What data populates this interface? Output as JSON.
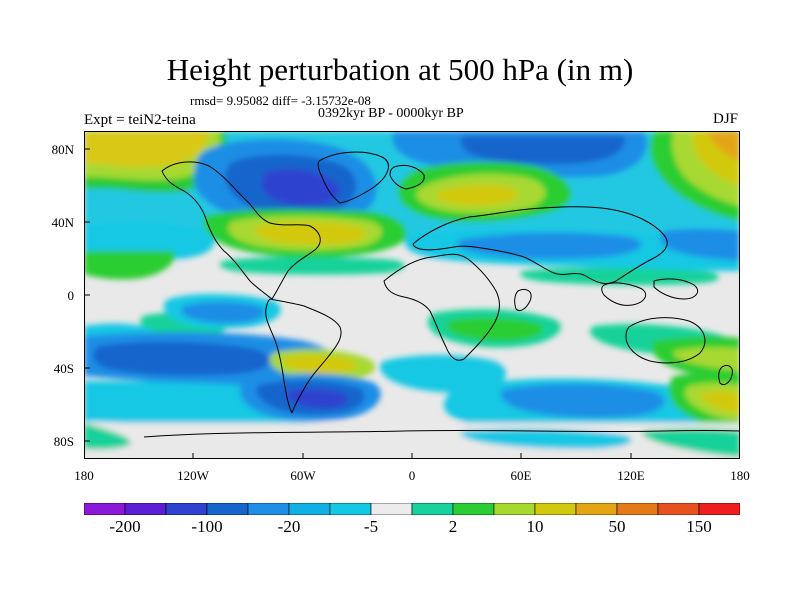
{
  "title": "Height perturbation at 500 hPa (in m)",
  "stats_line": "rmsd= 9.95082 diff= -3.15732e-08",
  "period": "0392kyr BP - 0000kyr BP",
  "experiment": "Expt = teiN2-teina",
  "season": "DJF",
  "map": {
    "projection": "cylindrical equidistant",
    "lon_range": [
      -180,
      180
    ],
    "lat_range": [
      -90,
      90
    ],
    "lat_ticks": [
      "80N",
      "40N",
      "0",
      "40S",
      "80S"
    ],
    "lon_ticks": [
      "180",
      "120W",
      "60W",
      "0",
      "60E",
      "120E",
      "180"
    ]
  },
  "colorbar": {
    "colors": [
      "#8a19d8",
      "#5a1fd4",
      "#2f43d0",
      "#1565cc",
      "#1f8ee6",
      "#0fb0e6",
      "#12c8e4",
      "#ececec",
      "#17d29a",
      "#2acd32",
      "#a6d92e",
      "#d2c90e",
      "#e3a512",
      "#e57817",
      "#e8501e",
      "#ee1d1e"
    ],
    "labels": [
      "-200",
      "-100",
      "-20",
      "-5",
      "2",
      "10",
      "50",
      "150"
    ]
  }
}
